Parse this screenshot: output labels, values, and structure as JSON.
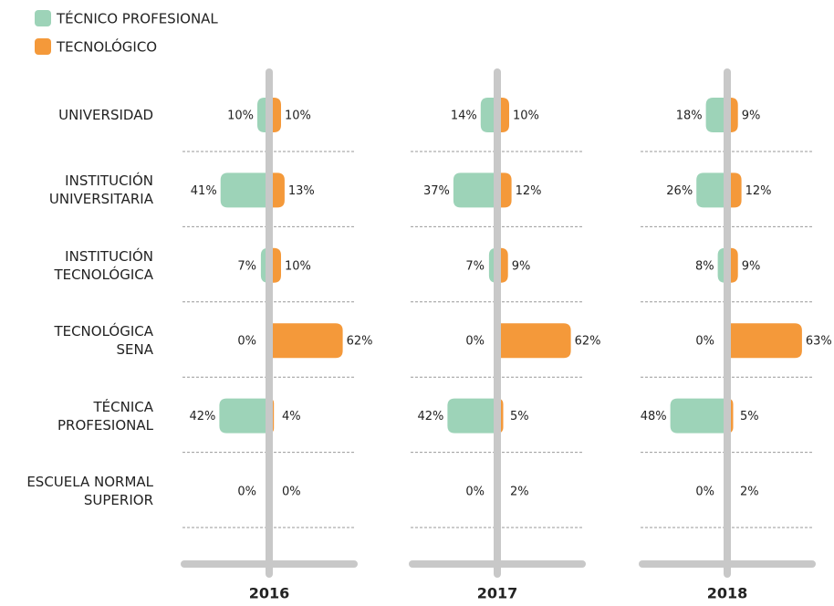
{
  "chart_data": {
    "type": "bar",
    "categories": [
      "UNIVERSIDAD",
      "INSTITUCIÓN UNIVERSITARIA",
      "INSTITUCIÓN TECNOLÓGICA",
      "TECNOLÓGICA SENA",
      "TÉCNICA PROFESIONAL",
      "ESCUELA NORMAL SUPERIOR"
    ],
    "series": [
      {
        "name": "TÉCNICO PROFESIONAL",
        "color": "#9dd3b8"
      },
      {
        "name": "TECNOLÓGICO",
        "color": "#f4993a"
      }
    ],
    "panels": [
      {
        "title": "2016",
        "series": [
          {
            "values": [
              10,
              41,
              7,
              0,
              42,
              0
            ],
            "value_labels": [
              "10%",
              "41%",
              "7%",
              "0%",
              "42%",
              "0%"
            ]
          },
          {
            "values": [
              10,
              13,
              10,
              62,
              4,
              0
            ],
            "value_labels": [
              "10%",
              "13%",
              "10%",
              "62%",
              "4%",
              "0%"
            ]
          }
        ]
      },
      {
        "title": "2017",
        "series": [
          {
            "values": [
              14,
              37,
              7,
              0,
              42,
              0
            ],
            "value_labels": [
              "14%",
              "37%",
              "7%",
              "0%",
              "42%",
              "0%"
            ]
          },
          {
            "values": [
              10,
              12,
              9,
              62,
              5,
              2
            ],
            "value_labels": [
              "10%",
              "12%",
              "9%",
              "62%",
              "5%",
              "2%"
            ]
          }
        ]
      },
      {
        "title": "2018",
        "series": [
          {
            "values": [
              18,
              26,
              8,
              0,
              48,
              0
            ],
            "value_labels": [
              "18%",
              "26%",
              "8%",
              "0%",
              "48%",
              "0%"
            ]
          },
          {
            "values": [
              9,
              12,
              9,
              63,
              5,
              2
            ],
            "value_labels": [
              "9%",
              "12%",
              "9%",
              "63%",
              "5%",
              "2%"
            ]
          }
        ]
      }
    ]
  }
}
